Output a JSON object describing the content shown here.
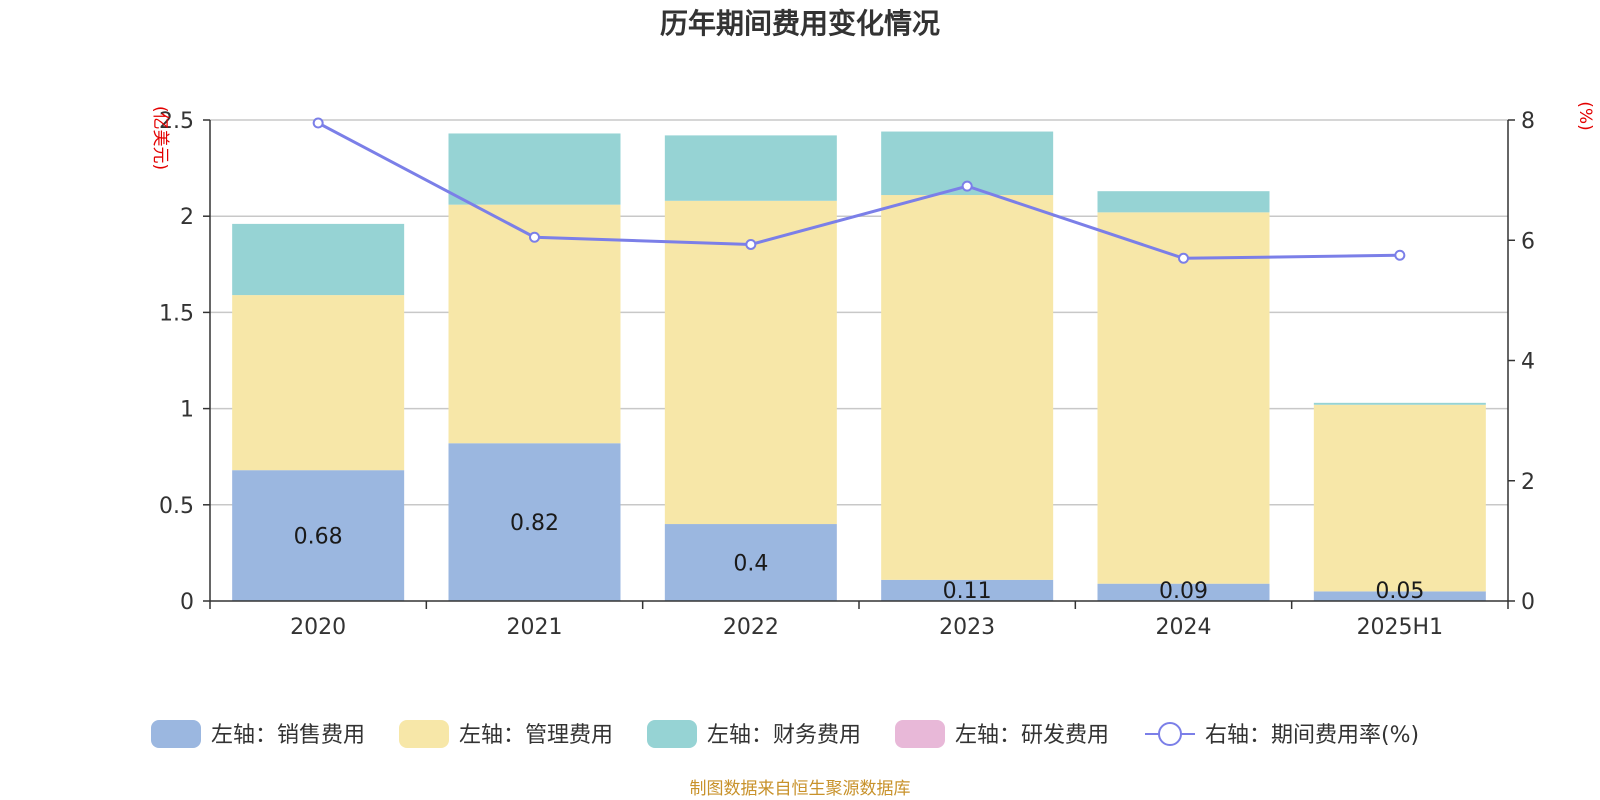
{
  "title": "历年期间费用变化情况",
  "source": "制图数据来自恒生聚源数据库",
  "chart_data": {
    "type": "bar",
    "title": "历年期间费用变化情况",
    "categories": [
      "2020",
      "2021",
      "2022",
      "2023",
      "2024",
      "2025H1"
    ],
    "left_axis": {
      "unit_label": "(亿美元)",
      "ylim": [
        0,
        2.5
      ],
      "ticks": [
        "0",
        "0.5",
        "1",
        "1.5",
        "2",
        "2.5"
      ]
    },
    "right_axis": {
      "unit_label": "(%)",
      "ylim": [
        0,
        8
      ],
      "ticks": [
        "0",
        "2",
        "4",
        "6",
        "8"
      ]
    },
    "grid": true,
    "legend_position": "bottom",
    "series": [
      {
        "name": "左轴：销售费用",
        "kind": "bar",
        "axis": "left",
        "color": "#9bb7e0",
        "values": [
          0.68,
          0.82,
          0.4,
          0.11,
          0.09,
          0.05
        ],
        "labels": [
          "0.68",
          "0.82",
          "0.4",
          "0.11",
          "0.09",
          "0.05"
        ]
      },
      {
        "name": "左轴：管理费用",
        "kind": "bar",
        "axis": "left",
        "color": "#f7e7a8",
        "values": [
          0.91,
          1.24,
          1.68,
          2.0,
          1.93,
          0.97
        ]
      },
      {
        "name": "左轴：财务费用",
        "kind": "bar",
        "axis": "left",
        "color": "#96d3d4",
        "values": [
          0.37,
          0.37,
          0.34,
          0.33,
          0.11,
          0.01
        ]
      },
      {
        "name": "左轴：研发费用",
        "kind": "bar",
        "axis": "left",
        "color": "#e8b8d8",
        "values": [
          0,
          0,
          0,
          0,
          0,
          0
        ]
      },
      {
        "name": "右轴：期间费用率(%)",
        "kind": "line",
        "axis": "right",
        "color": "#7b7fe8",
        "values": [
          7.95,
          6.05,
          5.93,
          6.9,
          5.7,
          5.75
        ]
      }
    ]
  }
}
